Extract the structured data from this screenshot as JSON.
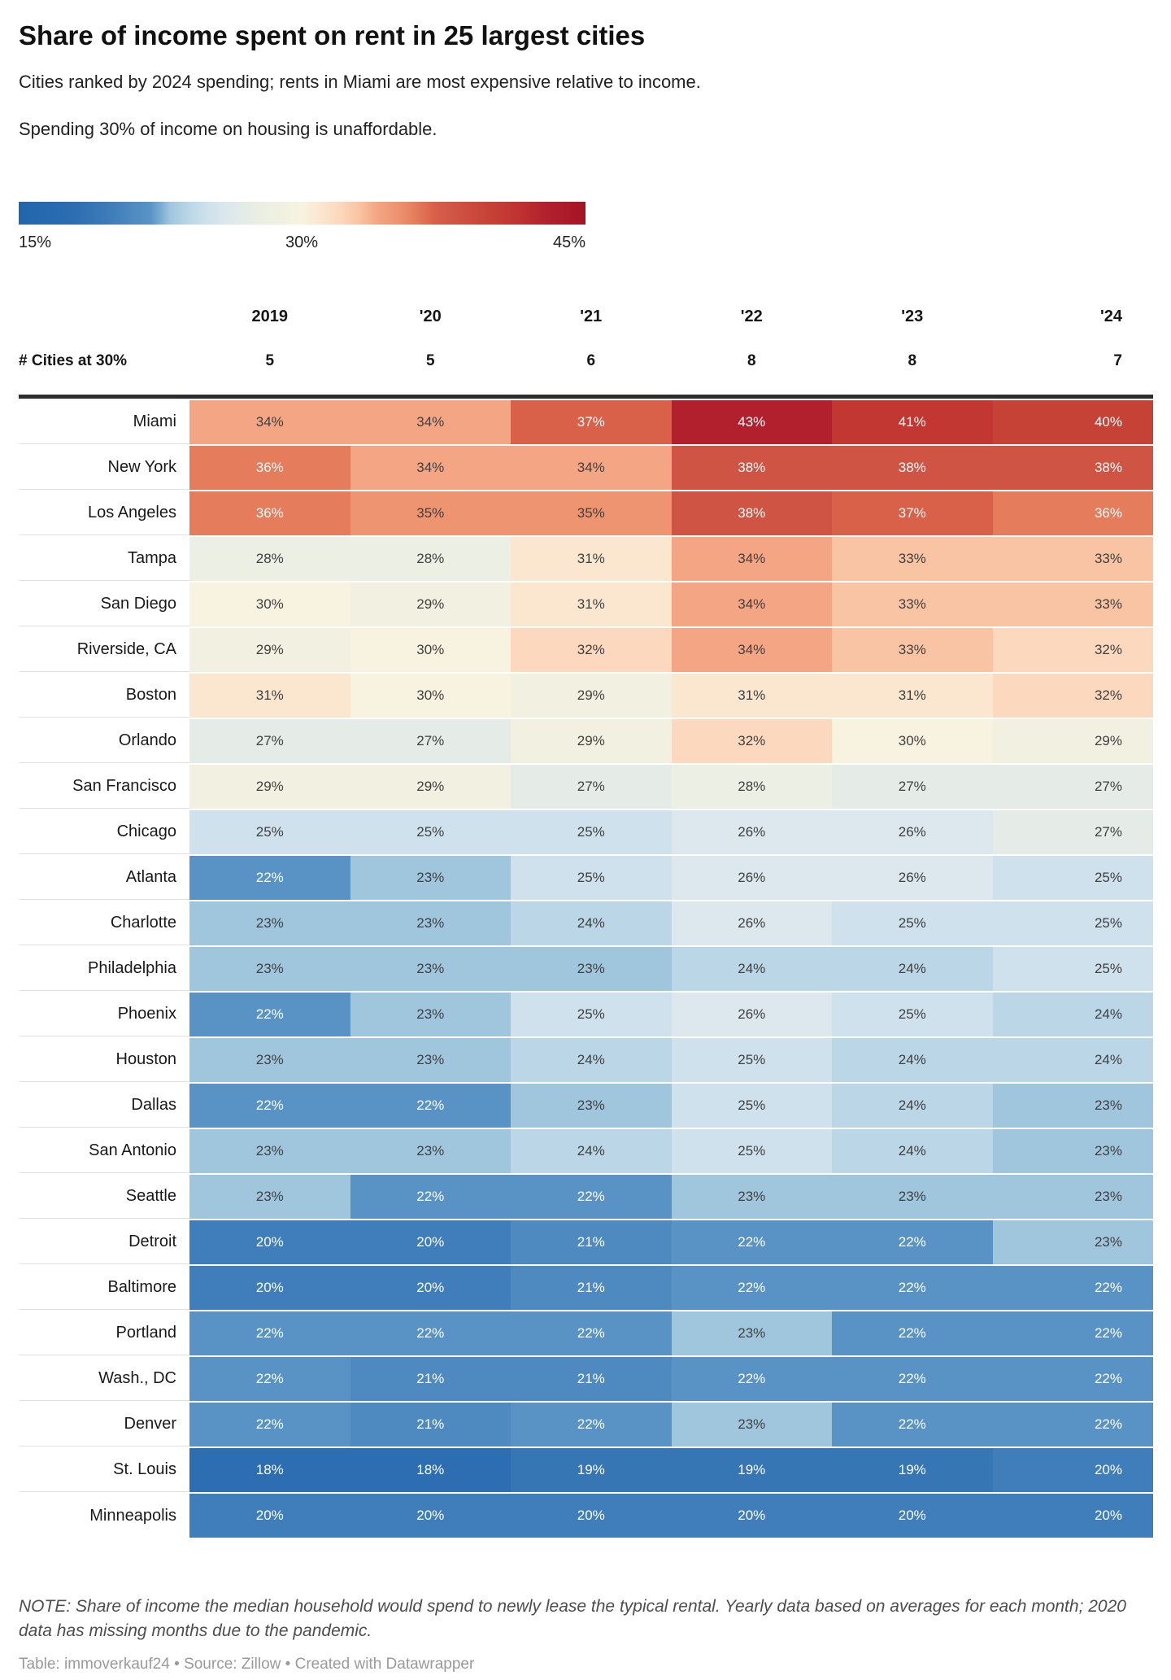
{
  "header": {
    "title": "Share of income spent on rent in 25 largest cities",
    "subtitle": "Cities ranked by 2024 spending; rents in Miami are most expensive relative to income.",
    "description": "Spending 30% of income on housing is unaffordable."
  },
  "legend": {
    "min_label": "15%",
    "mid_label": "30%",
    "max_label": "45%"
  },
  "footer": {
    "note": "NOTE: Share of income the median household would spend to newly lease the typical rental. Yearly data based on averages for each month; 2020 data has missing months due to the pandemic.",
    "credit": "Table: immoverkauf24 • Source: Zillow • Created with Datawrapper"
  },
  "chart_data": {
    "type": "heatmap",
    "title": "Share of income spent on rent in 25 largest cities",
    "columns": [
      "2019",
      "'20",
      "'21",
      "'22",
      "'23",
      "'24"
    ],
    "cities_at_30": {
      "label": "# Cities at 30%",
      "values": [
        "5",
        "5",
        "6",
        "8",
        "8",
        "7"
      ]
    },
    "value_suffix": "%",
    "rows": [
      {
        "city": "Miami",
        "values": [
          34,
          34,
          37,
          43,
          41,
          40
        ]
      },
      {
        "city": "New York",
        "values": [
          36,
          34,
          34,
          38,
          38,
          38
        ]
      },
      {
        "city": "Los Angeles",
        "values": [
          36,
          35,
          35,
          38,
          37,
          36
        ]
      },
      {
        "city": "Tampa",
        "values": [
          28,
          28,
          31,
          34,
          33,
          33
        ]
      },
      {
        "city": "San Diego",
        "values": [
          30,
          29,
          31,
          34,
          33,
          33
        ]
      },
      {
        "city": "Riverside, CA",
        "values": [
          29,
          30,
          32,
          34,
          33,
          32
        ]
      },
      {
        "city": "Boston",
        "values": [
          31,
          30,
          29,
          31,
          31,
          32
        ]
      },
      {
        "city": "Orlando",
        "values": [
          27,
          27,
          29,
          32,
          30,
          29
        ]
      },
      {
        "city": "San Francisco",
        "values": [
          29,
          29,
          27,
          28,
          27,
          27
        ]
      },
      {
        "city": "Chicago",
        "values": [
          25,
          25,
          25,
          26,
          26,
          27
        ]
      },
      {
        "city": "Atlanta",
        "values": [
          22,
          23,
          25,
          26,
          26,
          25
        ]
      },
      {
        "city": "Charlotte",
        "values": [
          23,
          23,
          24,
          26,
          25,
          25
        ]
      },
      {
        "city": "Philadelphia",
        "values": [
          23,
          23,
          23,
          24,
          24,
          25
        ]
      },
      {
        "city": "Phoenix",
        "values": [
          22,
          23,
          25,
          26,
          25,
          24
        ]
      },
      {
        "city": "Houston",
        "values": [
          23,
          23,
          24,
          25,
          24,
          24
        ]
      },
      {
        "city": "Dallas",
        "values": [
          22,
          22,
          23,
          25,
          24,
          23
        ]
      },
      {
        "city": "San Antonio",
        "values": [
          23,
          23,
          24,
          25,
          24,
          23
        ]
      },
      {
        "city": "Seattle",
        "values": [
          23,
          22,
          22,
          23,
          23,
          23
        ]
      },
      {
        "city": "Detroit",
        "values": [
          20,
          20,
          21,
          22,
          22,
          23
        ]
      },
      {
        "city": "Baltimore",
        "values": [
          20,
          20,
          21,
          22,
          22,
          22
        ]
      },
      {
        "city": "Portland",
        "values": [
          22,
          22,
          22,
          23,
          22,
          22
        ]
      },
      {
        "city": "Wash., DC",
        "values": [
          22,
          21,
          21,
          22,
          22,
          22
        ]
      },
      {
        "city": "Denver",
        "values": [
          22,
          21,
          22,
          23,
          22,
          22
        ]
      },
      {
        "city": "St. Louis",
        "values": [
          18,
          18,
          19,
          19,
          19,
          20
        ]
      },
      {
        "city": "Minneapolis",
        "values": [
          20,
          20,
          20,
          20,
          20,
          20
        ]
      }
    ],
    "scale": {
      "min": 15,
      "mid": 30,
      "max": 45,
      "unaffordable_threshold": 30,
      "legend_position": "top-left"
    },
    "color_stops": [
      {
        "v": 15,
        "color": "#2166ac"
      },
      {
        "v": 18,
        "color": "#2d6db1"
      },
      {
        "v": 19,
        "color": "#3776b5"
      },
      {
        "v": 20,
        "color": "#3f7eba"
      },
      {
        "v": 21,
        "color": "#4e8ac0"
      },
      {
        "v": 22,
        "color": "#5993c6"
      },
      {
        "v": 22.6,
        "color": "#7fb0d3"
      },
      {
        "v": 23,
        "color": "#a0c6de"
      },
      {
        "v": 24,
        "color": "#bad6e7"
      },
      {
        "v": 25,
        "color": "#cfe1ec"
      },
      {
        "v": 26,
        "color": "#dce8ed"
      },
      {
        "v": 27,
        "color": "#e5ece7"
      },
      {
        "v": 28,
        "color": "#ecefe3"
      },
      {
        "v": 29,
        "color": "#f2f1e1"
      },
      {
        "v": 30,
        "color": "#f7f3e0"
      },
      {
        "v": 31,
        "color": "#fbe6cf"
      },
      {
        "v": 32,
        "color": "#fcd8be"
      },
      {
        "v": 33,
        "color": "#f9c4a3"
      },
      {
        "v": 34,
        "color": "#f4a583"
      },
      {
        "v": 35,
        "color": "#ee9471"
      },
      {
        "v": 36,
        "color": "#e57c5c"
      },
      {
        "v": 37,
        "color": "#d96049"
      },
      {
        "v": 38,
        "color": "#d05444"
      },
      {
        "v": 40,
        "color": "#c64136"
      },
      {
        "v": 41,
        "color": "#c23732"
      },
      {
        "v": 43,
        "color": "#b2202d"
      },
      {
        "v": 45,
        "color": "#a41425"
      }
    ],
    "text_colors": {
      "light": "#ffffff",
      "dark": "#3f3f3f",
      "white_below": 23,
      "white_from": 36
    }
  }
}
